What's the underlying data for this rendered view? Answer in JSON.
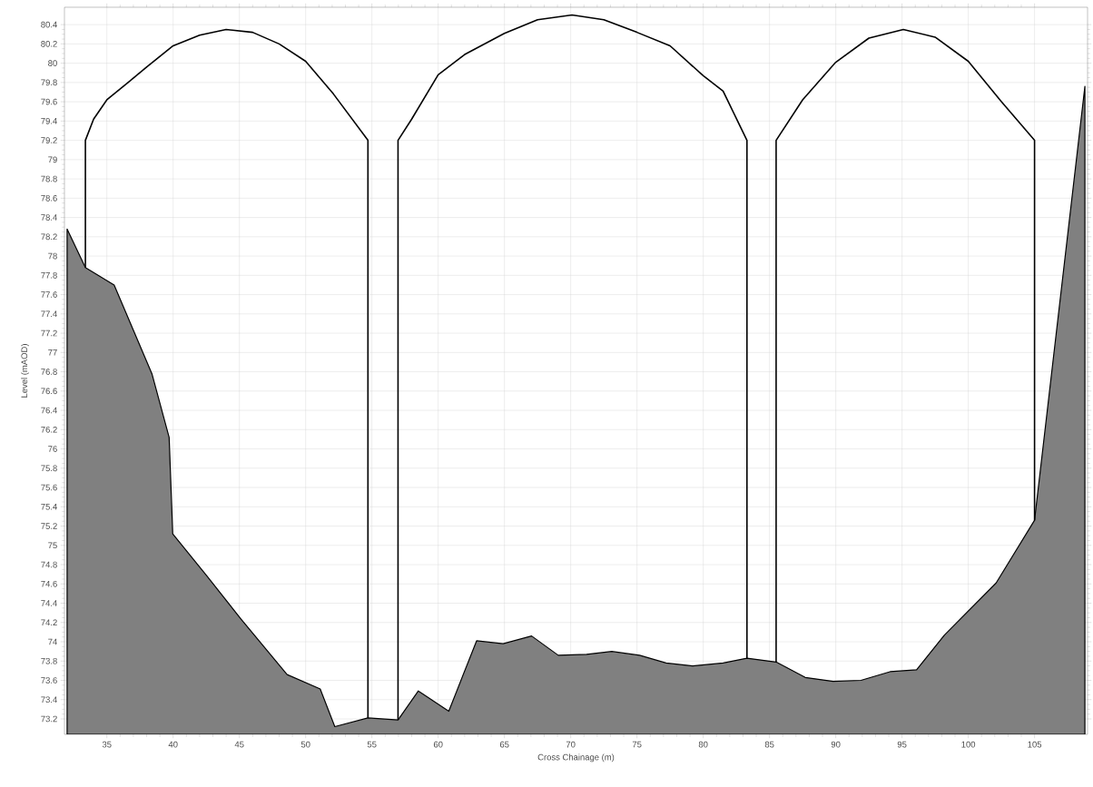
{
  "chart_data": {
    "type": "line",
    "xlabel": "Cross Chainage (m)",
    "ylabel": "Level (mAOD)",
    "xlim": [
      31.8,
      109.0
    ],
    "ylim": [
      73.04,
      80.58
    ],
    "xticks": [
      35,
      40,
      45,
      50,
      55,
      60,
      65,
      70,
      75,
      80,
      85,
      90,
      95,
      100,
      105
    ],
    "yticks": [
      73.2,
      73.4,
      73.6,
      73.8,
      74,
      74.2,
      74.4,
      74.6,
      74.8,
      75,
      75.2,
      75.4,
      75.6,
      75.8,
      76,
      76.2,
      76.4,
      76.6,
      76.8,
      77,
      77.2,
      77.4,
      77.6,
      77.8,
      78,
      78.2,
      78.4,
      78.6,
      78.8,
      79,
      79.2,
      79.4,
      79.6,
      79.8,
      80,
      80.2,
      80.4
    ],
    "grid": true,
    "series": [
      {
        "type": "area",
        "color": "#808080",
        "x": [
          32.0,
          33.38,
          35.55,
          38.4,
          39.7,
          39.97,
          42.5,
          45.1,
          48.6,
          51.1,
          52.2,
          54.7,
          56.97,
          58.5,
          60.8,
          62.9,
          64.9,
          67.05,
          69.06,
          71.2,
          73.1,
          75.2,
          77.2,
          79.2,
          81.5,
          83.3,
          85.5,
          87.7,
          89.8,
          91.9,
          94.1,
          96.1,
          98.2,
          102.1,
          105.0,
          108.8
        ],
        "values": [
          78.28,
          77.88,
          77.7,
          76.78,
          76.12,
          75.12,
          74.69,
          74.24,
          73.66,
          73.51,
          73.12,
          73.21,
          73.19,
          73.49,
          73.28,
          74.01,
          73.98,
          74.06,
          73.86,
          73.87,
          73.9,
          73.86,
          73.78,
          73.75,
          73.78,
          73.83,
          73.79,
          73.63,
          73.59,
          73.6,
          73.69,
          73.71,
          74.07,
          74.61,
          75.26,
          79.76
        ]
      },
      {
        "color": "#000000",
        "x": [
          33.38,
          33.38,
          34.0,
          35.0,
          36.6,
          38.0,
          40.0,
          42.0,
          44.0,
          46.0,
          48.0,
          50.0,
          52.1,
          54.7,
          54.7
        ],
        "values": [
          77.88,
          79.2,
          79.42,
          79.62,
          79.8,
          79.96,
          80.18,
          80.29,
          80.35,
          80.32,
          80.2,
          80.02,
          79.68,
          79.2,
          73.21
        ]
      },
      {
        "color": "#000000",
        "x": [
          56.97,
          56.97,
          58.0,
          60.0,
          62.0,
          65.0,
          67.5,
          70.1,
          72.5,
          75.0,
          77.5,
          80.0,
          81.5,
          83.3,
          83.3
        ],
        "values": [
          73.19,
          79.2,
          79.42,
          79.88,
          80.09,
          80.31,
          80.45,
          80.5,
          80.45,
          80.32,
          80.18,
          79.87,
          79.71,
          79.2,
          73.83
        ]
      },
      {
        "color": "#000000",
        "x": [
          85.5,
          85.5,
          87.5,
          90.0,
          92.5,
          95.1,
          97.5,
          100.0,
          102.5,
          105.0,
          105.0
        ],
        "values": [
          73.79,
          79.2,
          79.62,
          80.01,
          80.26,
          80.35,
          80.27,
          80.02,
          79.6,
          79.2,
          75.26
        ]
      }
    ]
  }
}
